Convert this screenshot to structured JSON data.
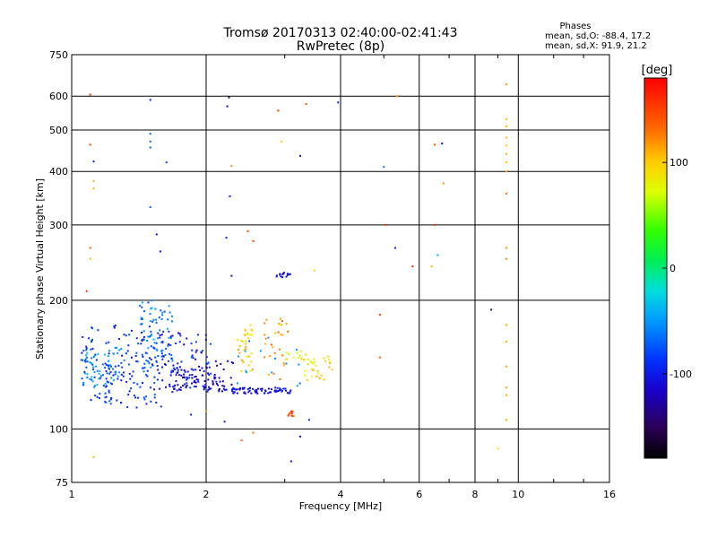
{
  "colors": {
    "ink": "#000000",
    "background": "#ffffff"
  },
  "chart_data": {
    "type": "scatter",
    "title": "Tromsø 20170313 02:40:00-02:41:43",
    "subtitle": "RwPretec (8p)",
    "xlabel": "Frequency [MHz]",
    "ylabel": "Stationary phase Virtual Height [km]",
    "x_scale": "log",
    "y_scale": "log",
    "xlim": [
      1,
      16
    ],
    "ylim": [
      75,
      750
    ],
    "x_ticks": [
      1,
      2,
      4,
      6,
      8,
      10,
      16
    ],
    "x_tick_labels": [
      "1",
      "2",
      "4",
      "6",
      "8",
      "10",
      "16"
    ],
    "y_ticks": [
      75,
      100,
      200,
      300,
      400,
      500,
      600,
      750
    ],
    "y_tick_labels": [
      "75",
      "100",
      "200",
      "300",
      "400",
      "500",
      "600",
      "750"
    ],
    "grid": true,
    "phase_stats": {
      "heading": "Phases",
      "line_o": "mean, sd,O: -88.4, 17.2",
      "line_x": "mean, sd,X:  91.9, 21.2"
    },
    "colorbar": {
      "label": "[deg]",
      "range": [
        -180,
        180
      ],
      "ticks": [
        100,
        0,
        -100
      ],
      "tick_labels": [
        "100",
        "0",
        "-100"
      ]
    },
    "clusters": [
      {
        "x": [
          1.05,
          1.6
        ],
        "y": [
          112,
          175
        ],
        "phase": -88,
        "count": 160
      },
      {
        "x": [
          1.05,
          1.32
        ],
        "y": [
          125,
          155
        ],
        "phase": -55,
        "count": 60
      },
      {
        "x": [
          1.42,
          1.7
        ],
        "y": [
          135,
          200
        ],
        "phase": -60,
        "count": 70
      },
      {
        "x": [
          1.55,
          2.05
        ],
        "y": [
          122,
          170
        ],
        "phase": -95,
        "count": 90
      },
      {
        "x": [
          1.68,
          2.1
        ],
        "y": [
          123,
          140
        ],
        "phase": -115,
        "count": 60
      },
      {
        "x": [
          2.1,
          2.3
        ],
        "y": [
          122,
          145
        ],
        "phase": -110,
        "count": 25
      },
      {
        "x": [
          2.25,
          3.1
        ],
        "y": [
          121,
          125
        ],
        "phase": -105,
        "count": 70
      },
      {
        "x": [
          2.35,
          2.55
        ],
        "y": [
          135,
          175
        ],
        "phase": 100,
        "count": 35
      },
      {
        "x": [
          2.7,
          3.05
        ],
        "y": [
          130,
          185
        ],
        "phase": 120,
        "count": 30
      },
      {
        "x": [
          2.35,
          3.4
        ],
        "y": [
          125,
          170
        ],
        "phase": -50,
        "count": 15
      },
      {
        "x": [
          3.0,
          3.4
        ],
        "y": [
          145,
          152
        ],
        "phase": 75,
        "count": 12
      },
      {
        "x": [
          3.3,
          3.85
        ],
        "y": [
          130,
          150
        ],
        "phase": 90,
        "count": 30
      },
      {
        "x": [
          3.05,
          3.15
        ],
        "y": [
          107,
          110
        ],
        "phase": 140,
        "count": 10
      },
      {
        "x": [
          2.85,
          3.1
        ],
        "y": [
          226,
          232
        ],
        "phase": -105,
        "count": 14
      }
    ],
    "sparse_points": [
      {
        "x": 1.1,
        "y": 605,
        "phase": 150
      },
      {
        "x": 1.1,
        "y": 462,
        "phase": 150
      },
      {
        "x": 1.12,
        "y": 422,
        "phase": -100
      },
      {
        "x": 1.12,
        "y": 380,
        "phase": 110
      },
      {
        "x": 1.12,
        "y": 365,
        "phase": 110
      },
      {
        "x": 1.1,
        "y": 265,
        "phase": 140
      },
      {
        "x": 1.1,
        "y": 250,
        "phase": 110
      },
      {
        "x": 1.08,
        "y": 210,
        "phase": 160
      },
      {
        "x": 1.12,
        "y": 86,
        "phase": 110
      },
      {
        "x": 1.5,
        "y": 588,
        "phase": -95
      },
      {
        "x": 1.5,
        "y": 490,
        "phase": -70
      },
      {
        "x": 1.5,
        "y": 470,
        "phase": -70
      },
      {
        "x": 1.5,
        "y": 455,
        "phase": -70
      },
      {
        "x": 1.5,
        "y": 330,
        "phase": -70
      },
      {
        "x": 1.63,
        "y": 420,
        "phase": -80
      },
      {
        "x": 1.55,
        "y": 285,
        "phase": -100
      },
      {
        "x": 1.58,
        "y": 260,
        "phase": -100
      },
      {
        "x": 2.25,
        "y": 596,
        "phase": -165
      },
      {
        "x": 2.23,
        "y": 568,
        "phase": -140
      },
      {
        "x": 2.28,
        "y": 412,
        "phase": 120
      },
      {
        "x": 2.26,
        "y": 350,
        "phase": -100
      },
      {
        "x": 2.22,
        "y": 280,
        "phase": -100
      },
      {
        "x": 2.28,
        "y": 228,
        "phase": -100
      },
      {
        "x": 2.48,
        "y": 290,
        "phase": 150
      },
      {
        "x": 2.55,
        "y": 275,
        "phase": 150
      },
      {
        "x": 2.9,
        "y": 555,
        "phase": 160
      },
      {
        "x": 2.95,
        "y": 470,
        "phase": 100
      },
      {
        "x": 3.35,
        "y": 575,
        "phase": 140
      },
      {
        "x": 3.25,
        "y": 435,
        "phase": -120
      },
      {
        "x": 3.5,
        "y": 235,
        "phase": 100
      },
      {
        "x": 3.95,
        "y": 580,
        "phase": -100
      },
      {
        "x": 5.0,
        "y": 410,
        "phase": -60
      },
      {
        "x": 5.35,
        "y": 600,
        "phase": 120
      },
      {
        "x": 5.05,
        "y": 300,
        "phase": 160
      },
      {
        "x": 5.3,
        "y": 265,
        "phase": -100
      },
      {
        "x": 5.8,
        "y": 240,
        "phase": 160
      },
      {
        "x": 4.9,
        "y": 185,
        "phase": 150
      },
      {
        "x": 4.9,
        "y": 147,
        "phase": 140
      },
      {
        "x": 6.5,
        "y": 462,
        "phase": 150
      },
      {
        "x": 6.75,
        "y": 465,
        "phase": -110
      },
      {
        "x": 6.8,
        "y": 375,
        "phase": 120
      },
      {
        "x": 6.5,
        "y": 300,
        "phase": 160
      },
      {
        "x": 6.6,
        "y": 255,
        "phase": -40
      },
      {
        "x": 6.4,
        "y": 240,
        "phase": 110
      },
      {
        "x": 8.7,
        "y": 190,
        "phase": -140
      },
      {
        "x": 9.0,
        "y": 90,
        "phase": 100
      },
      {
        "x": 9.4,
        "y": 640,
        "phase": 120
      },
      {
        "x": 9.4,
        "y": 530,
        "phase": 105
      },
      {
        "x": 9.4,
        "y": 510,
        "phase": 110
      },
      {
        "x": 9.4,
        "y": 480,
        "phase": 110
      },
      {
        "x": 9.4,
        "y": 460,
        "phase": 100
      },
      {
        "x": 9.4,
        "y": 440,
        "phase": 110
      },
      {
        "x": 9.4,
        "y": 420,
        "phase": 105
      },
      {
        "x": 9.4,
        "y": 400,
        "phase": 115
      },
      {
        "x": 9.4,
        "y": 355,
        "phase": 130
      },
      {
        "x": 9.4,
        "y": 265,
        "phase": 120
      },
      {
        "x": 9.4,
        "y": 250,
        "phase": 125
      },
      {
        "x": 9.4,
        "y": 175,
        "phase": 110
      },
      {
        "x": 9.4,
        "y": 160,
        "phase": 110
      },
      {
        "x": 9.4,
        "y": 140,
        "phase": 115
      },
      {
        "x": 9.4,
        "y": 125,
        "phase": 115
      },
      {
        "x": 9.4,
        "y": 120,
        "phase": 110
      },
      {
        "x": 9.4,
        "y": 105,
        "phase": 110
      },
      {
        "x": 3.4,
        "y": 105,
        "phase": -90
      },
      {
        "x": 3.1,
        "y": 84,
        "phase": -110
      },
      {
        "x": 3.25,
        "y": 96,
        "phase": -120
      },
      {
        "x": 2.2,
        "y": 104,
        "phase": -100
      },
      {
        "x": 2.55,
        "y": 98,
        "phase": 130
      },
      {
        "x": 2.4,
        "y": 94,
        "phase": 140
      },
      {
        "x": 2.0,
        "y": 110,
        "phase": 120
      },
      {
        "x": 1.85,
        "y": 108,
        "phase": -100
      }
    ]
  }
}
